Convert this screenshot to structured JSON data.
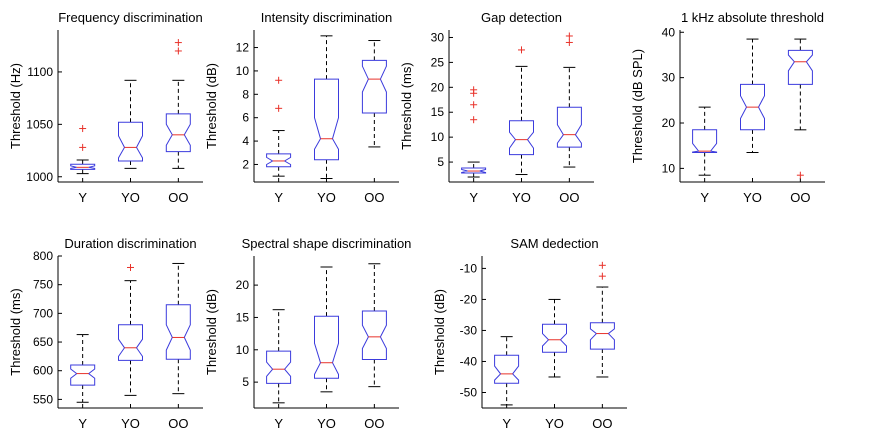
{
  "colors": {
    "box": "#3b3bdd",
    "median": "#e8322a",
    "outlier": "#e8322a",
    "axis": "#000000",
    "whisker": "#000000"
  },
  "chart_data": [
    {
      "type": "box",
      "title": "Frequency discrimination",
      "ylabel": "Threshold (Hz)",
      "categories": [
        "Y",
        "YO",
        "OO"
      ],
      "ylim": [
        995,
        1140
      ],
      "yticks": [
        1000,
        1050,
        1100
      ],
      "ytick_labels": [
        "1000",
        "1050",
        "1100"
      ],
      "boxes": [
        {
          "q1": 1007,
          "median": 1009,
          "q3": 1012,
          "wlo": 1003,
          "whi": 1016,
          "notch_lo": 1008,
          "notch_hi": 1010.5,
          "outliers": [
            1028,
            1046
          ]
        },
        {
          "q1": 1015,
          "median": 1028,
          "q3": 1052,
          "wlo": 1008,
          "whi": 1092,
          "notch_lo": 1018,
          "notch_hi": 1039,
          "outliers": []
        },
        {
          "q1": 1024,
          "median": 1040,
          "q3": 1060,
          "wlo": 1008,
          "whi": 1092,
          "notch_lo": 1030,
          "notch_hi": 1050,
          "outliers": [
            1120,
            1128
          ]
        }
      ]
    },
    {
      "type": "box",
      "title": "Intensity discrimination",
      "ylabel": "Threshold (dB)",
      "categories": [
        "Y",
        "YO",
        "OO"
      ],
      "ylim": [
        0.5,
        13.5
      ],
      "yticks": [
        2,
        4,
        6,
        8,
        10,
        12
      ],
      "ytick_labels": [
        "2",
        "4",
        "6",
        "8",
        "10",
        "12"
      ],
      "boxes": [
        {
          "q1": 1.8,
          "median": 2.3,
          "q3": 2.9,
          "wlo": 1.0,
          "whi": 4.9,
          "notch_lo": 2.0,
          "notch_hi": 2.6,
          "outliers": [
            6.8,
            9.2
          ]
        },
        {
          "q1": 2.4,
          "median": 4.2,
          "q3": 9.3,
          "wlo": 0.8,
          "whi": 13.0,
          "notch_lo": 3.3,
          "notch_hi": 6.0,
          "outliers": []
        },
        {
          "q1": 6.4,
          "median": 9.3,
          "q3": 10.9,
          "wlo": 3.5,
          "whi": 12.6,
          "notch_lo": 8.2,
          "notch_hi": 10.4,
          "outliers": []
        }
      ]
    },
    {
      "type": "box",
      "title": "Gap detection",
      "ylabel": "Threshold (ms)",
      "categories": [
        "Y",
        "YO",
        "OO"
      ],
      "ylim": [
        1,
        31.5
      ],
      "yticks": [
        5,
        10,
        15,
        20,
        25,
        30
      ],
      "ytick_labels": [
        "5",
        "10",
        "15",
        "20",
        "25",
        "30"
      ],
      "boxes": [
        {
          "q1": 2.8,
          "median": 3.2,
          "q3": 3.8,
          "wlo": 2.0,
          "whi": 5.0,
          "notch_lo": 2.9,
          "notch_hi": 3.5,
          "outliers": [
            13.5,
            16.5,
            18.8,
            19.5
          ]
        },
        {
          "q1": 6.5,
          "median": 9.5,
          "q3": 13.3,
          "wlo": 2.5,
          "whi": 24.2,
          "notch_lo": 7.8,
          "notch_hi": 11.0,
          "outliers": [
            27.5
          ]
        },
        {
          "q1": 8.0,
          "median": 10.5,
          "q3": 16.0,
          "wlo": 4.0,
          "whi": 24.0,
          "notch_lo": 8.8,
          "notch_hi": 12.5,
          "outliers": [
            29.0,
            30.3
          ]
        }
      ]
    },
    {
      "type": "box",
      "title": "1 kHz absolute threshold",
      "ylabel": "Threshold (dB SPL)",
      "categories": [
        "Y",
        "YO",
        "OO"
      ],
      "ylim": [
        7,
        40.5
      ],
      "yticks": [
        10,
        20,
        30,
        40
      ],
      "ytick_labels": [
        "10",
        "20",
        "30",
        "40"
      ],
      "boxes": [
        {
          "q1": 13.5,
          "median": 13.8,
          "q3": 18.5,
          "wlo": 8.5,
          "whi": 23.5,
          "notch_lo": 13.6,
          "notch_hi": 15.5,
          "outliers": []
        },
        {
          "q1": 18.5,
          "median": 23.5,
          "q3": 28.5,
          "wlo": 13.5,
          "whi": 38.5,
          "notch_lo": 21.0,
          "notch_hi": 26.0,
          "outliers": []
        },
        {
          "q1": 28.5,
          "median": 33.5,
          "q3": 36.0,
          "wlo": 18.5,
          "whi": 38.5,
          "notch_lo": 31.5,
          "notch_hi": 35.0,
          "outliers": [
            8.5
          ]
        }
      ]
    },
    {
      "type": "box",
      "title": "Duration discrimination",
      "ylabel": "Threshold (ms)",
      "categories": [
        "Y",
        "YO",
        "OO"
      ],
      "ylim": [
        535,
        800
      ],
      "yticks": [
        550,
        600,
        650,
        700,
        750,
        800
      ],
      "ytick_labels": [
        "550",
        "600",
        "650",
        "700",
        "750",
        "800"
      ],
      "boxes": [
        {
          "q1": 575,
          "median": 595,
          "q3": 610,
          "wlo": 545,
          "whi": 663,
          "notch_lo": 587,
          "notch_hi": 603,
          "outliers": []
        },
        {
          "q1": 618,
          "median": 640,
          "q3": 680,
          "wlo": 557,
          "whi": 757,
          "notch_lo": 625,
          "notch_hi": 655,
          "outliers": [
            780
          ]
        },
        {
          "q1": 620,
          "median": 658,
          "q3": 715,
          "wlo": 560,
          "whi": 787,
          "notch_lo": 636,
          "notch_hi": 680,
          "outliers": []
        }
      ]
    },
    {
      "type": "box",
      "title": "Spectral shape discrimination",
      "ylabel": "Threshold (dB)",
      "categories": [
        "Y",
        "YO",
        "OO"
      ],
      "ylim": [
        1,
        24.5
      ],
      "yticks": [
        5,
        10,
        15,
        20
      ],
      "ytick_labels": [
        "5",
        "10",
        "15",
        "20"
      ],
      "boxes": [
        {
          "q1": 4.8,
          "median": 7.0,
          "q3": 9.8,
          "wlo": 1.8,
          "whi": 16.2,
          "notch_lo": 5.9,
          "notch_hi": 8.1,
          "outliers": []
        },
        {
          "q1": 5.6,
          "median": 8.0,
          "q3": 15.2,
          "wlo": 3.5,
          "whi": 22.8,
          "notch_lo": 6.2,
          "notch_hi": 11.0,
          "outliers": []
        },
        {
          "q1": 8.5,
          "median": 12.0,
          "q3": 16.0,
          "wlo": 4.3,
          "whi": 23.3,
          "notch_lo": 10.2,
          "notch_hi": 13.8,
          "outliers": []
        }
      ]
    },
    {
      "type": "box",
      "title": "SAM dedection",
      "ylabel": "Threshold (dB)",
      "categories": [
        "Y",
        "YO",
        "OO"
      ],
      "ylim": [
        -55,
        -6
      ],
      "yticks": [
        -50,
        -40,
        -30,
        -20,
        -10
      ],
      "ytick_labels": [
        "-50",
        "-40",
        "-30",
        "-20",
        "-10"
      ],
      "boxes": [
        {
          "q1": -47,
          "median": -44,
          "q3": -38,
          "wlo": -54,
          "whi": -32,
          "notch_lo": -46,
          "notch_hi": -41.5,
          "outliers": []
        },
        {
          "q1": -37,
          "median": -33,
          "q3": -28,
          "wlo": -45,
          "whi": -20,
          "notch_lo": -35,
          "notch_hi": -31,
          "outliers": []
        },
        {
          "q1": -36,
          "median": -31,
          "q3": -27.5,
          "wlo": -45,
          "whi": -16,
          "notch_lo": -33,
          "notch_hi": -29.5,
          "outliers": [
            -12.5,
            -9
          ]
        }
      ]
    }
  ]
}
